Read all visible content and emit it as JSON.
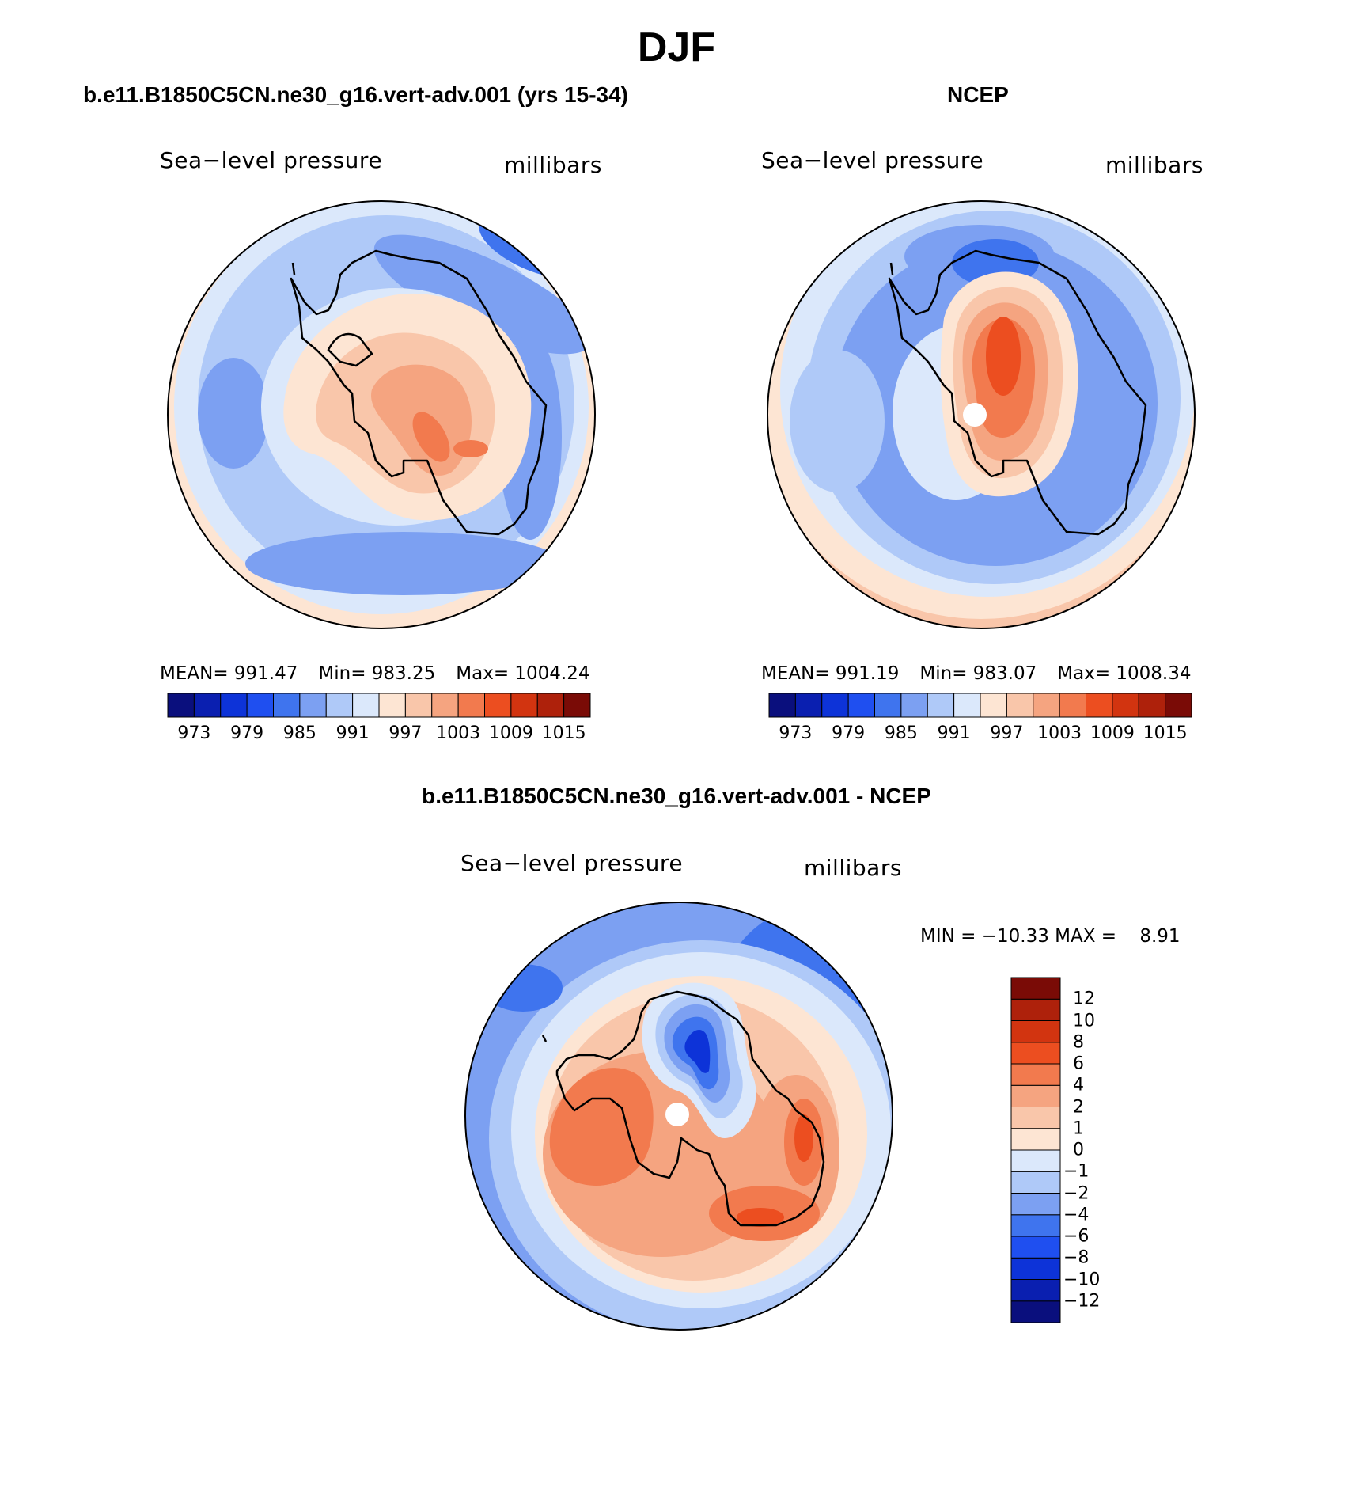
{
  "figure": {
    "title": "DJF"
  },
  "panel_model": {
    "title": "b.e11.B1850C5CN.ne30_g16.vert-adv.001 (yrs 15-34)",
    "left_label": "Sea−level pressure",
    "right_label": "millibars",
    "stats": {
      "mean": "MEAN= 991.47",
      "min": "Min= 983.25",
      "max": "Max= 1004.24"
    }
  },
  "panel_obs": {
    "title": "NCEP",
    "left_label": "Sea−level pressure",
    "right_label": "millibars",
    "stats": {
      "mean": "MEAN= 991.19",
      "min": "Min= 983.07",
      "max": "Max= 1008.34"
    }
  },
  "panel_diff": {
    "title": "b.e11.B1850C5CN.ne30_g16.vert-adv.001 - NCEP",
    "left_label": "Sea−level pressure",
    "right_label": "millibars",
    "minmax": "MIN = −10.33 MAX =    8.91"
  },
  "colorbar_abs": {
    "tick_labels": [
      "973",
      "979",
      "985",
      "991",
      "997",
      "1003",
      "1009",
      "1015"
    ],
    "levels": [
      973,
      976,
      979,
      982,
      985,
      988,
      991,
      994,
      997,
      1000,
      1003,
      1006,
      1009,
      1012,
      1015
    ]
  },
  "colorbar_diff": {
    "tick_labels": [
      "12",
      "10",
      "8",
      "6",
      "4",
      "2",
      "1",
      "0",
      "−1",
      "−2",
      "−4",
      "−6",
      "−8",
      "−10",
      "−12"
    ],
    "levels": [
      -12,
      -10,
      -8,
      -6,
      -4,
      -2,
      -1,
      0,
      1,
      2,
      4,
      6,
      8,
      10,
      12
    ]
  },
  "palette": [
    "#0a0f7d",
    "#0a1fb0",
    "#0d33d8",
    "#1f4ff0",
    "#3f74ee",
    "#7ca0f2",
    "#afc9f8",
    "#dbe8fb",
    "#fde5d3",
    "#f9c6aa",
    "#f5a480",
    "#f27a4e",
    "#ec4e20",
    "#d23410",
    "#ae210b",
    "#7a0b06"
  ],
  "chart_data": [
    {
      "type": "heatmap",
      "title": "b.e11.B1850C5CN.ne30_g16.vert-adv.001 (yrs 15-34)",
      "projection": "south polar stereographic",
      "variable": "Sea-level pressure",
      "units": "millibars",
      "mean": 991.47,
      "min": 983.25,
      "max": 1004.24,
      "contour_levels": [
        973,
        976,
        979,
        982,
        985,
        988,
        991,
        994,
        997,
        1000,
        1003,
        1006,
        1009,
        1012,
        1015
      ]
    },
    {
      "type": "heatmap",
      "title": "NCEP",
      "projection": "south polar stereographic",
      "variable": "Sea-level pressure",
      "units": "millibars",
      "mean": 991.19,
      "min": 983.07,
      "max": 1008.34,
      "contour_levels": [
        973,
        976,
        979,
        982,
        985,
        988,
        991,
        994,
        997,
        1000,
        1003,
        1006,
        1009,
        1012,
        1015
      ]
    },
    {
      "type": "heatmap",
      "title": "b.e11.B1850C5CN.ne30_g16.vert-adv.001 - NCEP",
      "projection": "south polar stereographic",
      "variable": "Sea-level pressure",
      "units": "millibars",
      "min": -10.33,
      "max": 8.91,
      "contour_levels": [
        -12,
        -10,
        -8,
        -6,
        -4,
        -2,
        -1,
        0,
        1,
        2,
        4,
        6,
        8,
        10,
        12
      ]
    }
  ]
}
